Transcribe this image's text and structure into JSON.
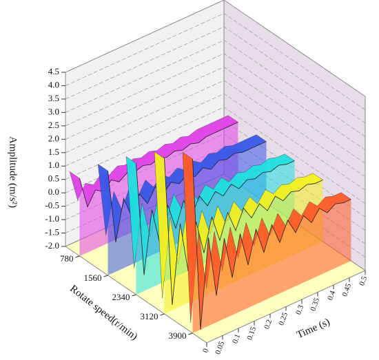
{
  "chart_data": {
    "type": "waterfall3d",
    "z_label": "Amplitude (m/s²)",
    "y_label": "Rotate speed(r/min)",
    "x_label": "Time (s)",
    "categories": [
      "780",
      "1560",
      "2340",
      "3120",
      "3900"
    ],
    "x": [
      0,
      0.025,
      0.05,
      0.075,
      0.1,
      0.125,
      0.15,
      0.175,
      0.2,
      0.225,
      0.25,
      0.275,
      0.3,
      0.325,
      0.35,
      0.375,
      0.4,
      0.425,
      0.45,
      0.475,
      0.5
    ],
    "xlim": [
      0,
      0.5
    ],
    "xticks": [
      0,
      0.05,
      0.1,
      0.15,
      0.2,
      0.25,
      0.3,
      0.35,
      0.4,
      0.45,
      0.5
    ],
    "zlim": [
      -2,
      4.5
    ],
    "zticks": [
      {
        "value": -2,
        "label": "-2.0"
      },
      {
        "value": -1.5,
        "label": "-1.5"
      },
      {
        "value": -1,
        "label": "-1.0"
      },
      {
        "value": -0.5,
        "label": "-0.5"
      },
      {
        "value": 0,
        "label": "0.0"
      },
      {
        "value": 0.5,
        "label": "0.5"
      },
      {
        "value": 1,
        "label": "1.0"
      },
      {
        "value": 1.5,
        "label": "1.5"
      },
      {
        "value": 2,
        "label": "2.0"
      },
      {
        "value": 2.5,
        "label": "2.5"
      },
      {
        "value": 3,
        "label": "3.0"
      },
      {
        "value": 3.5,
        "label": "3.5"
      },
      {
        "value": 4,
        "label": "4.0"
      },
      {
        "value": 4.5,
        "label": "4.5"
      }
    ],
    "grid": true,
    "series": [
      {
        "name": "780",
        "color": "#e040e8",
        "values": [
          0.9,
          -0.3,
          0.2,
          0.0,
          0.3,
          0.1,
          0.3,
          0.2,
          0.3,
          0.2,
          0.3,
          0.2,
          0.3,
          0.2,
          0.3,
          0.2,
          0.3,
          0.3,
          0.3,
          0.3,
          0.3
        ]
      },
      {
        "name": "1560",
        "color": "#3858e8",
        "values": [
          1.9,
          -0.9,
          0.6,
          -0.2,
          0.5,
          0.0,
          0.5,
          0.1,
          0.4,
          0.2,
          0.4,
          0.2,
          0.4,
          0.2,
          0.4,
          0.3,
          0.4,
          0.3,
          0.3,
          0.3,
          0.3
        ]
      },
      {
        "name": "2340",
        "color": "#20e0e0",
        "values": [
          2.9,
          -1.4,
          0.9,
          -0.5,
          0.8,
          -0.2,
          0.7,
          0.0,
          0.6,
          0.1,
          0.5,
          0.2,
          0.5,
          0.2,
          0.4,
          0.3,
          0.4,
          0.3,
          0.4,
          0.3,
          0.3
        ]
      },
      {
        "name": "3120",
        "color": "#f4f020",
        "values": [
          3.8,
          -1.8,
          1.1,
          -0.8,
          0.9,
          -0.4,
          0.8,
          -0.2,
          0.7,
          -0.1,
          0.6,
          0.1,
          0.5,
          0.1,
          0.5,
          0.2,
          0.4,
          0.3,
          0.4,
          0.3,
          0.3
        ]
      },
      {
        "name": "3900",
        "color": "#ff5a28",
        "values": [
          4.5,
          -2.0,
          1.3,
          -1.0,
          1.0,
          -0.6,
          0.9,
          -0.4,
          0.8,
          -0.2,
          0.7,
          -0.1,
          0.6,
          0.0,
          0.5,
          0.1,
          0.5,
          0.2,
          0.4,
          0.3,
          0.3
        ]
      }
    ]
  }
}
